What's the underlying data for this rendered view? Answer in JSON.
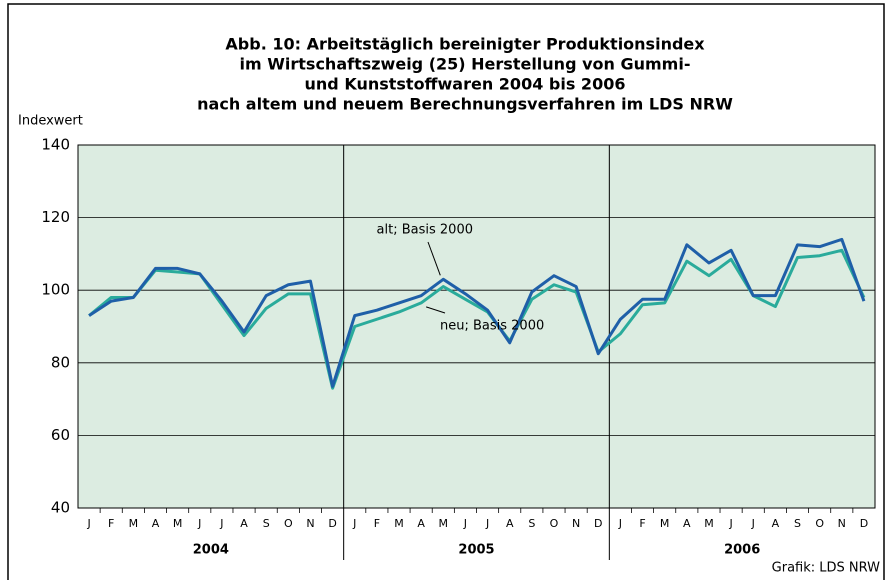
{
  "chart_data": {
    "type": "line",
    "title": [
      "Abb. 10: Arbeitstäglich bereinigter Produktionsindex",
      "im Wirtschaftszweig (25) Herstellung von Gummi-",
      "und Kunststoffwaren 2004 bis 2006",
      "nach altem und neuem Berechnungsverfahren im LDS NRW"
    ],
    "y_label": "Indexwert",
    "source": "Grafik: LDS NRW",
    "categories": [
      "J",
      "F",
      "M",
      "A",
      "M",
      "J",
      "J",
      "A",
      "S",
      "O",
      "N",
      "D",
      "J",
      "F",
      "M",
      "A",
      "M",
      "J",
      "J",
      "A",
      "S",
      "O",
      "N",
      "D",
      "J",
      "F",
      "M",
      "A",
      "M",
      "J",
      "J",
      "A",
      "S",
      "O",
      "N",
      "D"
    ],
    "years": [
      "2004",
      "2005",
      "2006"
    ],
    "series": [
      {
        "name": "alt; Basis 2000",
        "color": "#1f5fa8",
        "values": [
          93,
          97,
          98,
          106,
          106,
          104.5,
          97,
          88.5,
          98.5,
          101.5,
          102.5,
          73.5,
          93,
          94.5,
          96.5,
          98.5,
          103,
          99,
          94.5,
          85.5,
          99.5,
          104,
          101,
          82.5,
          92,
          97.5,
          97.5,
          112.5,
          107.5,
          111,
          98.5,
          98.5,
          112.5,
          112,
          114,
          97
        ]
      },
      {
        "name": "neu; Basis 2000",
        "color": "#2aab9b",
        "values": [
          93,
          98,
          98,
          105.5,
          105,
          104.5,
          96,
          87.5,
          95,
          99,
          99,
          73,
          90,
          92,
          94,
          96.5,
          101,
          97.5,
          94,
          86,
          97.5,
          101.5,
          99.5,
          83,
          88,
          96,
          96.5,
          108,
          104,
          108.5,
          98.5,
          95.5,
          109,
          109.5,
          111,
          98
        ]
      }
    ],
    "ylim": [
      40,
      140
    ],
    "yticks": [
      40,
      60,
      80,
      100,
      120,
      140
    ],
    "grid": true,
    "background": "#dcece1"
  }
}
